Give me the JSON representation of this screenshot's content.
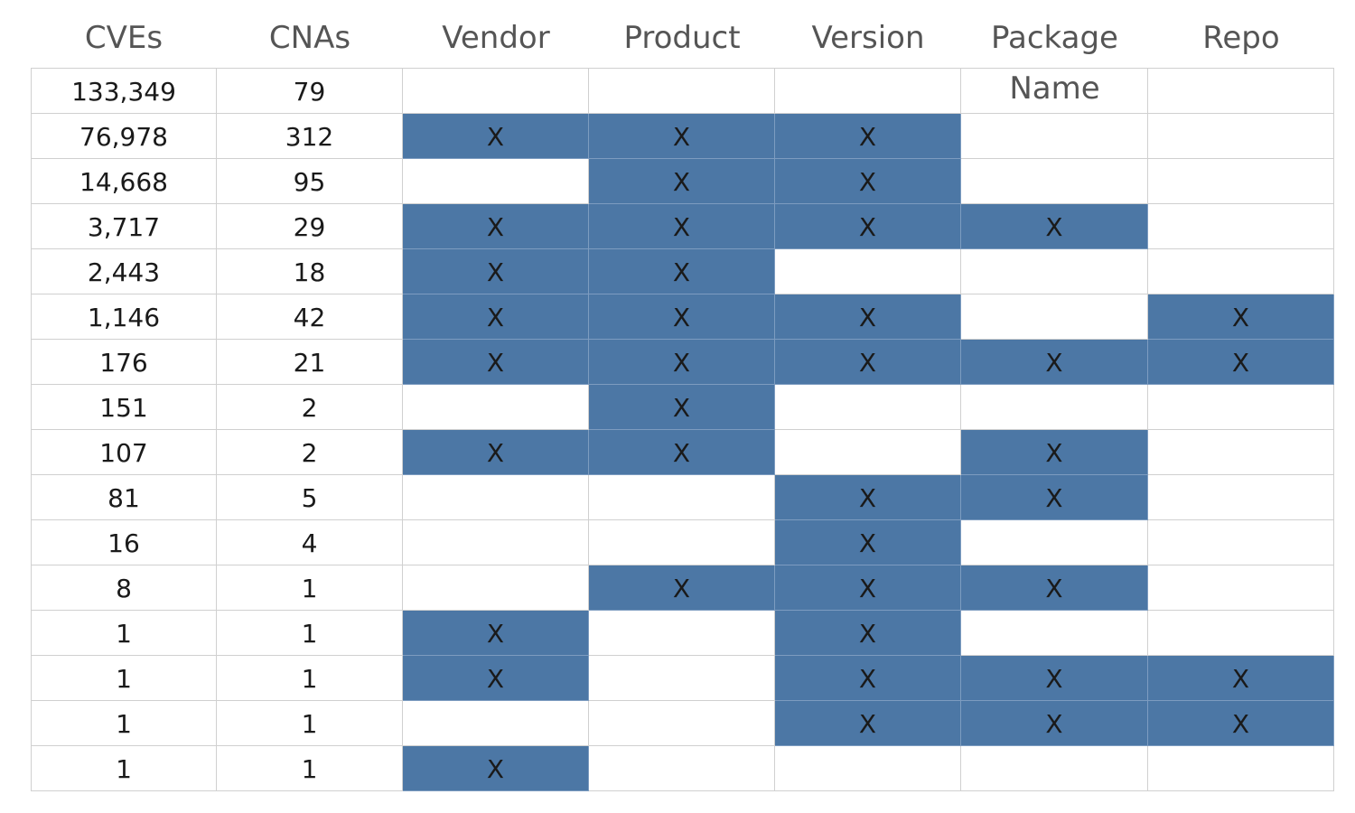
{
  "chart_data": {
    "type": "table",
    "columns": [
      "CVEs",
      "CNAs",
      "Vendor",
      "Product",
      "Version",
      "Package Name",
      "Repo"
    ],
    "mark": "X",
    "colors": {
      "filled": "#4c77a5",
      "grid": "#d0d0d0",
      "header_text": "#555555"
    },
    "rows": [
      {
        "cves": "133,349",
        "cnas": "79",
        "flags": [
          false,
          false,
          false,
          false,
          false
        ]
      },
      {
        "cves": "76,978",
        "cnas": "312",
        "flags": [
          true,
          true,
          true,
          false,
          false
        ]
      },
      {
        "cves": "14,668",
        "cnas": "95",
        "flags": [
          false,
          true,
          true,
          false,
          false
        ]
      },
      {
        "cves": "3,717",
        "cnas": "29",
        "flags": [
          true,
          true,
          true,
          true,
          false
        ]
      },
      {
        "cves": "2,443",
        "cnas": "18",
        "flags": [
          true,
          true,
          false,
          false,
          false
        ]
      },
      {
        "cves": "1,146",
        "cnas": "42",
        "flags": [
          true,
          true,
          true,
          false,
          true
        ]
      },
      {
        "cves": "176",
        "cnas": "21",
        "flags": [
          true,
          true,
          true,
          true,
          true
        ]
      },
      {
        "cves": "151",
        "cnas": "2",
        "flags": [
          false,
          true,
          false,
          false,
          false
        ]
      },
      {
        "cves": "107",
        "cnas": "2",
        "flags": [
          true,
          true,
          false,
          true,
          false
        ]
      },
      {
        "cves": "81",
        "cnas": "5",
        "flags": [
          false,
          false,
          true,
          true,
          false
        ]
      },
      {
        "cves": "16",
        "cnas": "4",
        "flags": [
          false,
          false,
          true,
          false,
          false
        ]
      },
      {
        "cves": "8",
        "cnas": "1",
        "flags": [
          false,
          true,
          true,
          true,
          false
        ]
      },
      {
        "cves": "1",
        "cnas": "1",
        "flags": [
          true,
          false,
          true,
          false,
          false
        ]
      },
      {
        "cves": "1",
        "cnas": "1",
        "flags": [
          true,
          false,
          true,
          true,
          true
        ]
      },
      {
        "cves": "1",
        "cnas": "1",
        "flags": [
          false,
          false,
          true,
          true,
          true
        ]
      },
      {
        "cves": "1",
        "cnas": "1",
        "flags": [
          true,
          false,
          false,
          false,
          false
        ]
      }
    ]
  }
}
